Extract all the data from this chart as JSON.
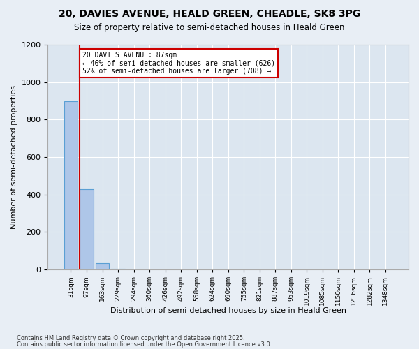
{
  "title": "20, DAVIES AVENUE, HEALD GREEN, CHEADLE, SK8 3PG",
  "subtitle": "Size of property relative to semi-detached houses in Heald Green",
  "xlabel": "Distribution of semi-detached houses by size in Heald Green",
  "ylabel": "Number of semi-detached properties",
  "bar_color": "#aec6e8",
  "bar_edge_color": "#5a9fd4",
  "background_color": "#dce6f0",
  "grid_color": "#ffffff",
  "x_labels": [
    "31sqm",
    "97sqm",
    "163sqm",
    "229sqm",
    "294sqm",
    "360sqm",
    "426sqm",
    "492sqm",
    "558sqm",
    "624sqm",
    "690sqm",
    "755sqm",
    "821sqm",
    "887sqm",
    "953sqm",
    "1019sqm",
    "1085sqm",
    "1150sqm",
    "1216sqm",
    "1282sqm",
    "1348sqm"
  ],
  "bar_heights": [
    900,
    430,
    35,
    5,
    2,
    1,
    1,
    0,
    0,
    0,
    0,
    0,
    0,
    0,
    0,
    0,
    0,
    0,
    0,
    0,
    0
  ],
  "property_bin_index": 1,
  "property_label": "20 DAVIES AVENUE: 87sqm",
  "pct_smaller": 46,
  "num_smaller": 626,
  "pct_larger": 52,
  "num_larger": 708,
  "red_line_color": "#cc0000",
  "annotation_box_color": "#cc0000",
  "ylim": [
    0,
    1200
  ],
  "yticks": [
    0,
    200,
    400,
    600,
    800,
    1000,
    1200
  ],
  "footnote1": "Contains HM Land Registry data © Crown copyright and database right 2025.",
  "footnote2": "Contains public sector information licensed under the Open Government Licence v3.0."
}
